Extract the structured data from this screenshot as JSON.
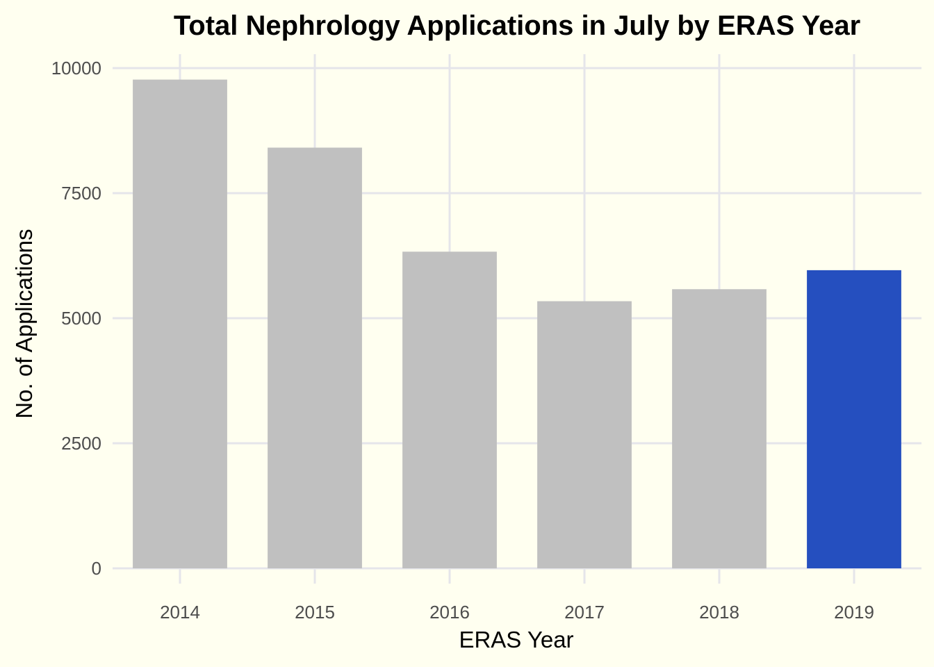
{
  "chart_data": {
    "type": "bar",
    "title": "Total Nephrology Applications in July by ERAS Year",
    "xlabel": "ERAS Year",
    "ylabel": "No. of Applications",
    "categories": [
      "2014",
      "2015",
      "2016",
      "2017",
      "2018",
      "2019"
    ],
    "values": [
      9770,
      8410,
      6330,
      5340,
      5580,
      5960
    ],
    "ylim": [
      0,
      10000
    ],
    "yticks": [
      0,
      2500,
      5000,
      7500,
      10000
    ],
    "ytick_labels": [
      "0",
      "2500",
      "5000",
      "7500",
      "10000"
    ],
    "grid": true,
    "legend": "none",
    "highlight_index": 5,
    "colors": {
      "default_bar": "#c0c0c0",
      "highlight_bar": "#254fbf",
      "background": "#fffff0",
      "grid": "#e5e5ea"
    }
  }
}
